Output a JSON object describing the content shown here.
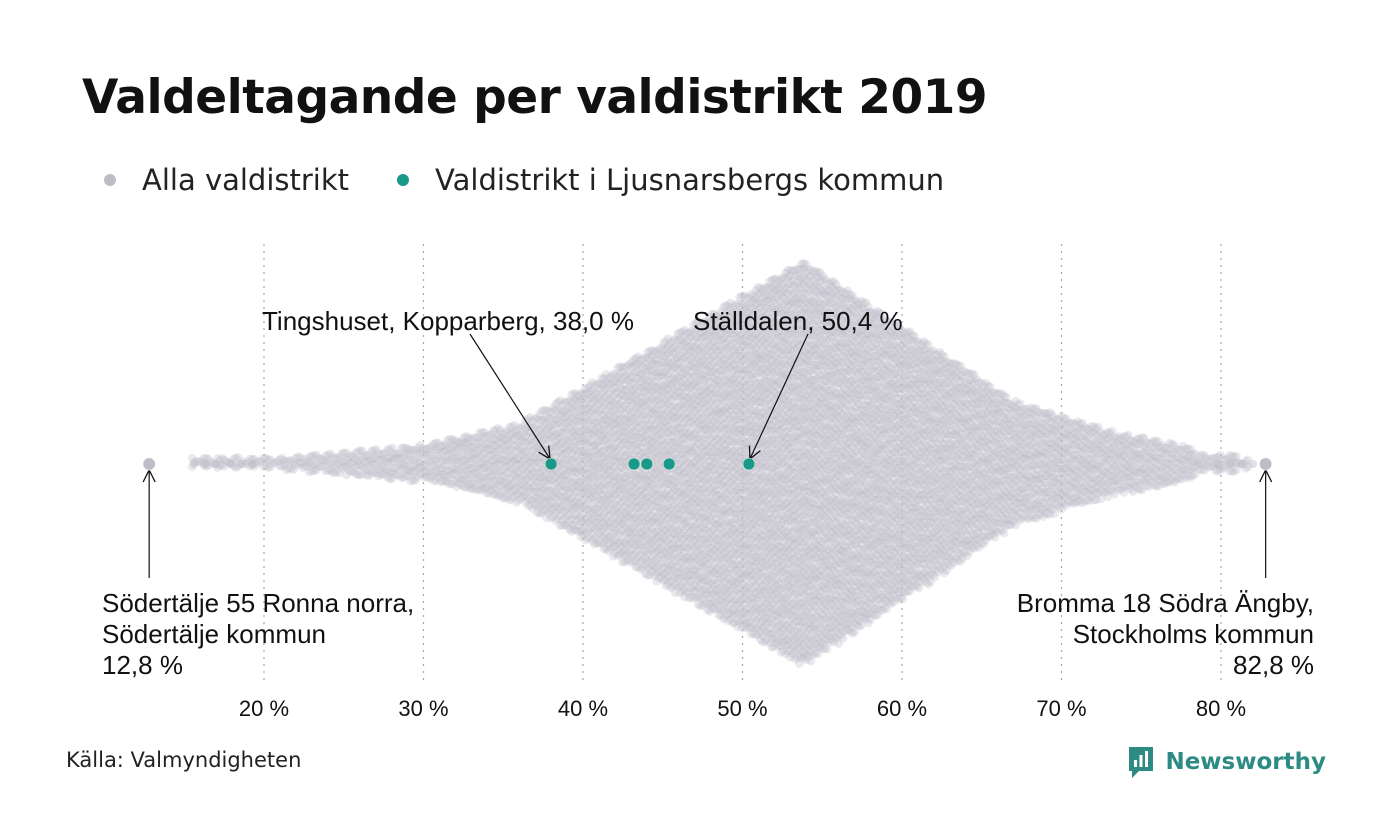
{
  "page": {
    "title": "Valdeltagande per valdistrikt 2019",
    "source": "Källa: Valmyndigheten",
    "brand": "Newsworthy",
    "brand_color": "#2e8b84"
  },
  "legend": [
    {
      "label": "Alla valdistrikt",
      "color": "#bdbcc7"
    },
    {
      "label": "Valdistrikt i Ljusnarsbergs kommun",
      "color": "#1a998a"
    }
  ],
  "chart_data": {
    "type": "scatter",
    "subtype": "beeswarm",
    "title": "Valdeltagande per valdistrikt 2019",
    "xlabel": "",
    "ylabel": "",
    "xlim": [
      12,
      83
    ],
    "x_ticks": [
      20,
      30,
      40,
      50,
      60,
      70,
      80
    ],
    "x_tick_labels": [
      "20 %",
      "30 %",
      "40 %",
      "50 %",
      "60 %",
      "70 %",
      "80 %"
    ],
    "grid": "vertical dotted",
    "legend_position": "top-left",
    "distribution": {
      "min": 12.8,
      "max": 82.8,
      "peak": 53.8,
      "color": "#bdbcc7"
    },
    "series": [
      {
        "name": "Valdistrikt i Ljusnarsbergs kommun",
        "color": "#1a998a",
        "x": [
          38.0,
          43.2,
          44.0,
          45.4,
          50.4
        ]
      },
      {
        "name": "Alla valdistrikt",
        "color": "#bdbcc7",
        "x": [
          12.8,
          82.8
        ]
      }
    ],
    "annotations": [
      {
        "lines": [
          "Tingshuset, Kopparberg, 38,0 %"
        ],
        "x": 38.0
      },
      {
        "lines": [
          "Ställdalen, 50,4 %"
        ],
        "x": 50.4
      },
      {
        "lines": [
          "Södertälje 55 Ronna norra,",
          "Södertälje kommun",
          "12,8 %"
        ],
        "x": 12.8
      },
      {
        "lines": [
          "Bromma 18 Södra Ängby,",
          "Stockholms kommun",
          "82,8 %"
        ],
        "x": 82.8
      }
    ]
  }
}
